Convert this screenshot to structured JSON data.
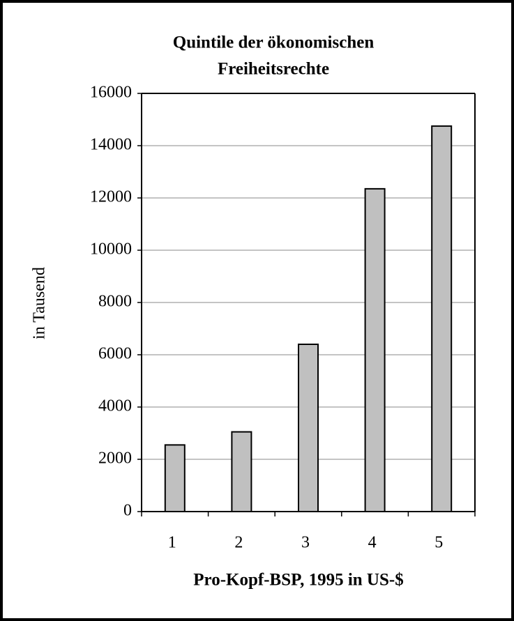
{
  "chart_data": {
    "type": "bar",
    "title": [
      "Quintile der ökonomischen",
      "Freiheitsrechte"
    ],
    "x_label": "Pro-Kopf-BSP, 1995 in US-$",
    "y_label": "in Tausend",
    "categories": [
      "1",
      "2",
      "3",
      "4",
      "5"
    ],
    "values": [
      2550,
      3050,
      6400,
      12350,
      14750
    ],
    "color": "#c0c0c0",
    "ylim": [
      0,
      16000
    ],
    "yticks": [
      0,
      2000,
      4000,
      6000,
      8000,
      10000,
      12000,
      14000,
      16000
    ],
    "grid": true
  }
}
